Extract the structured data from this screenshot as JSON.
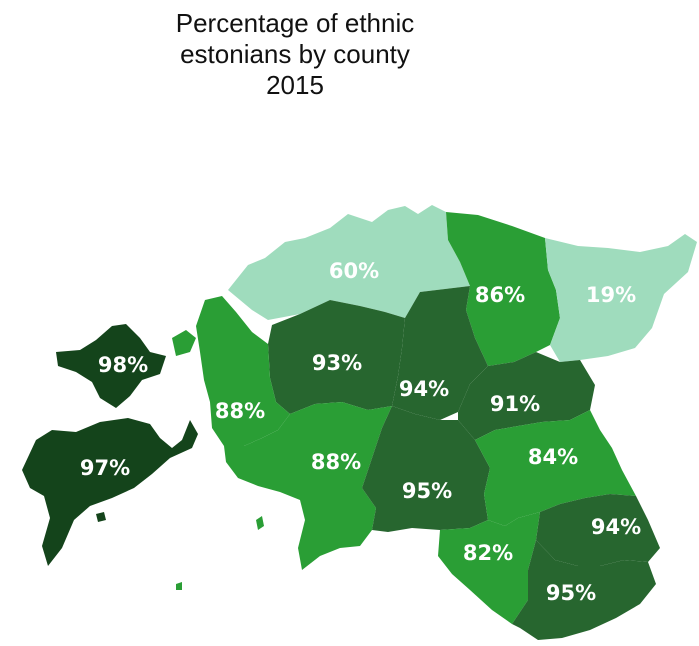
{
  "title": {
    "line1": "Percentage of ethnic",
    "line2": "estonians by county",
    "line3": "2015"
  },
  "colors": {
    "band_under_25": "#9fdcbd",
    "band_25_75": "#9fdcbd",
    "band_80_89": "#2a9e35",
    "band_90_96": "#27662f",
    "band_97_plus": "#14441b",
    "label": "#ffffff"
  },
  "counties": [
    {
      "id": "harju",
      "value": "60%",
      "band": "band_25_75"
    },
    {
      "id": "laane-viru",
      "value": "86%",
      "band": "band_80_89"
    },
    {
      "id": "ida-viru",
      "value": "19%",
      "band": "band_under_25"
    },
    {
      "id": "hiiu",
      "value": "98%",
      "band": "band_97_plus"
    },
    {
      "id": "saare",
      "value": "97%",
      "band": "band_97_plus"
    },
    {
      "id": "rapla",
      "value": "93%",
      "band": "band_90_96"
    },
    {
      "id": "jarva",
      "value": "94%",
      "band": "band_90_96"
    },
    {
      "id": "jogeva",
      "value": "91%",
      "band": "band_90_96"
    },
    {
      "id": "laane",
      "value": "88%",
      "band": "band_80_89"
    },
    {
      "id": "parnu",
      "value": "88%",
      "band": "band_80_89"
    },
    {
      "id": "viljandi",
      "value": "95%",
      "band": "band_90_96"
    },
    {
      "id": "tartu",
      "value": "84%",
      "band": "band_80_89"
    },
    {
      "id": "valga",
      "value": "82%",
      "band": "band_80_89"
    },
    {
      "id": "polva",
      "value": "94%",
      "band": "band_90_96"
    },
    {
      "id": "voru",
      "value": "95%",
      "band": "band_90_96"
    }
  ]
}
